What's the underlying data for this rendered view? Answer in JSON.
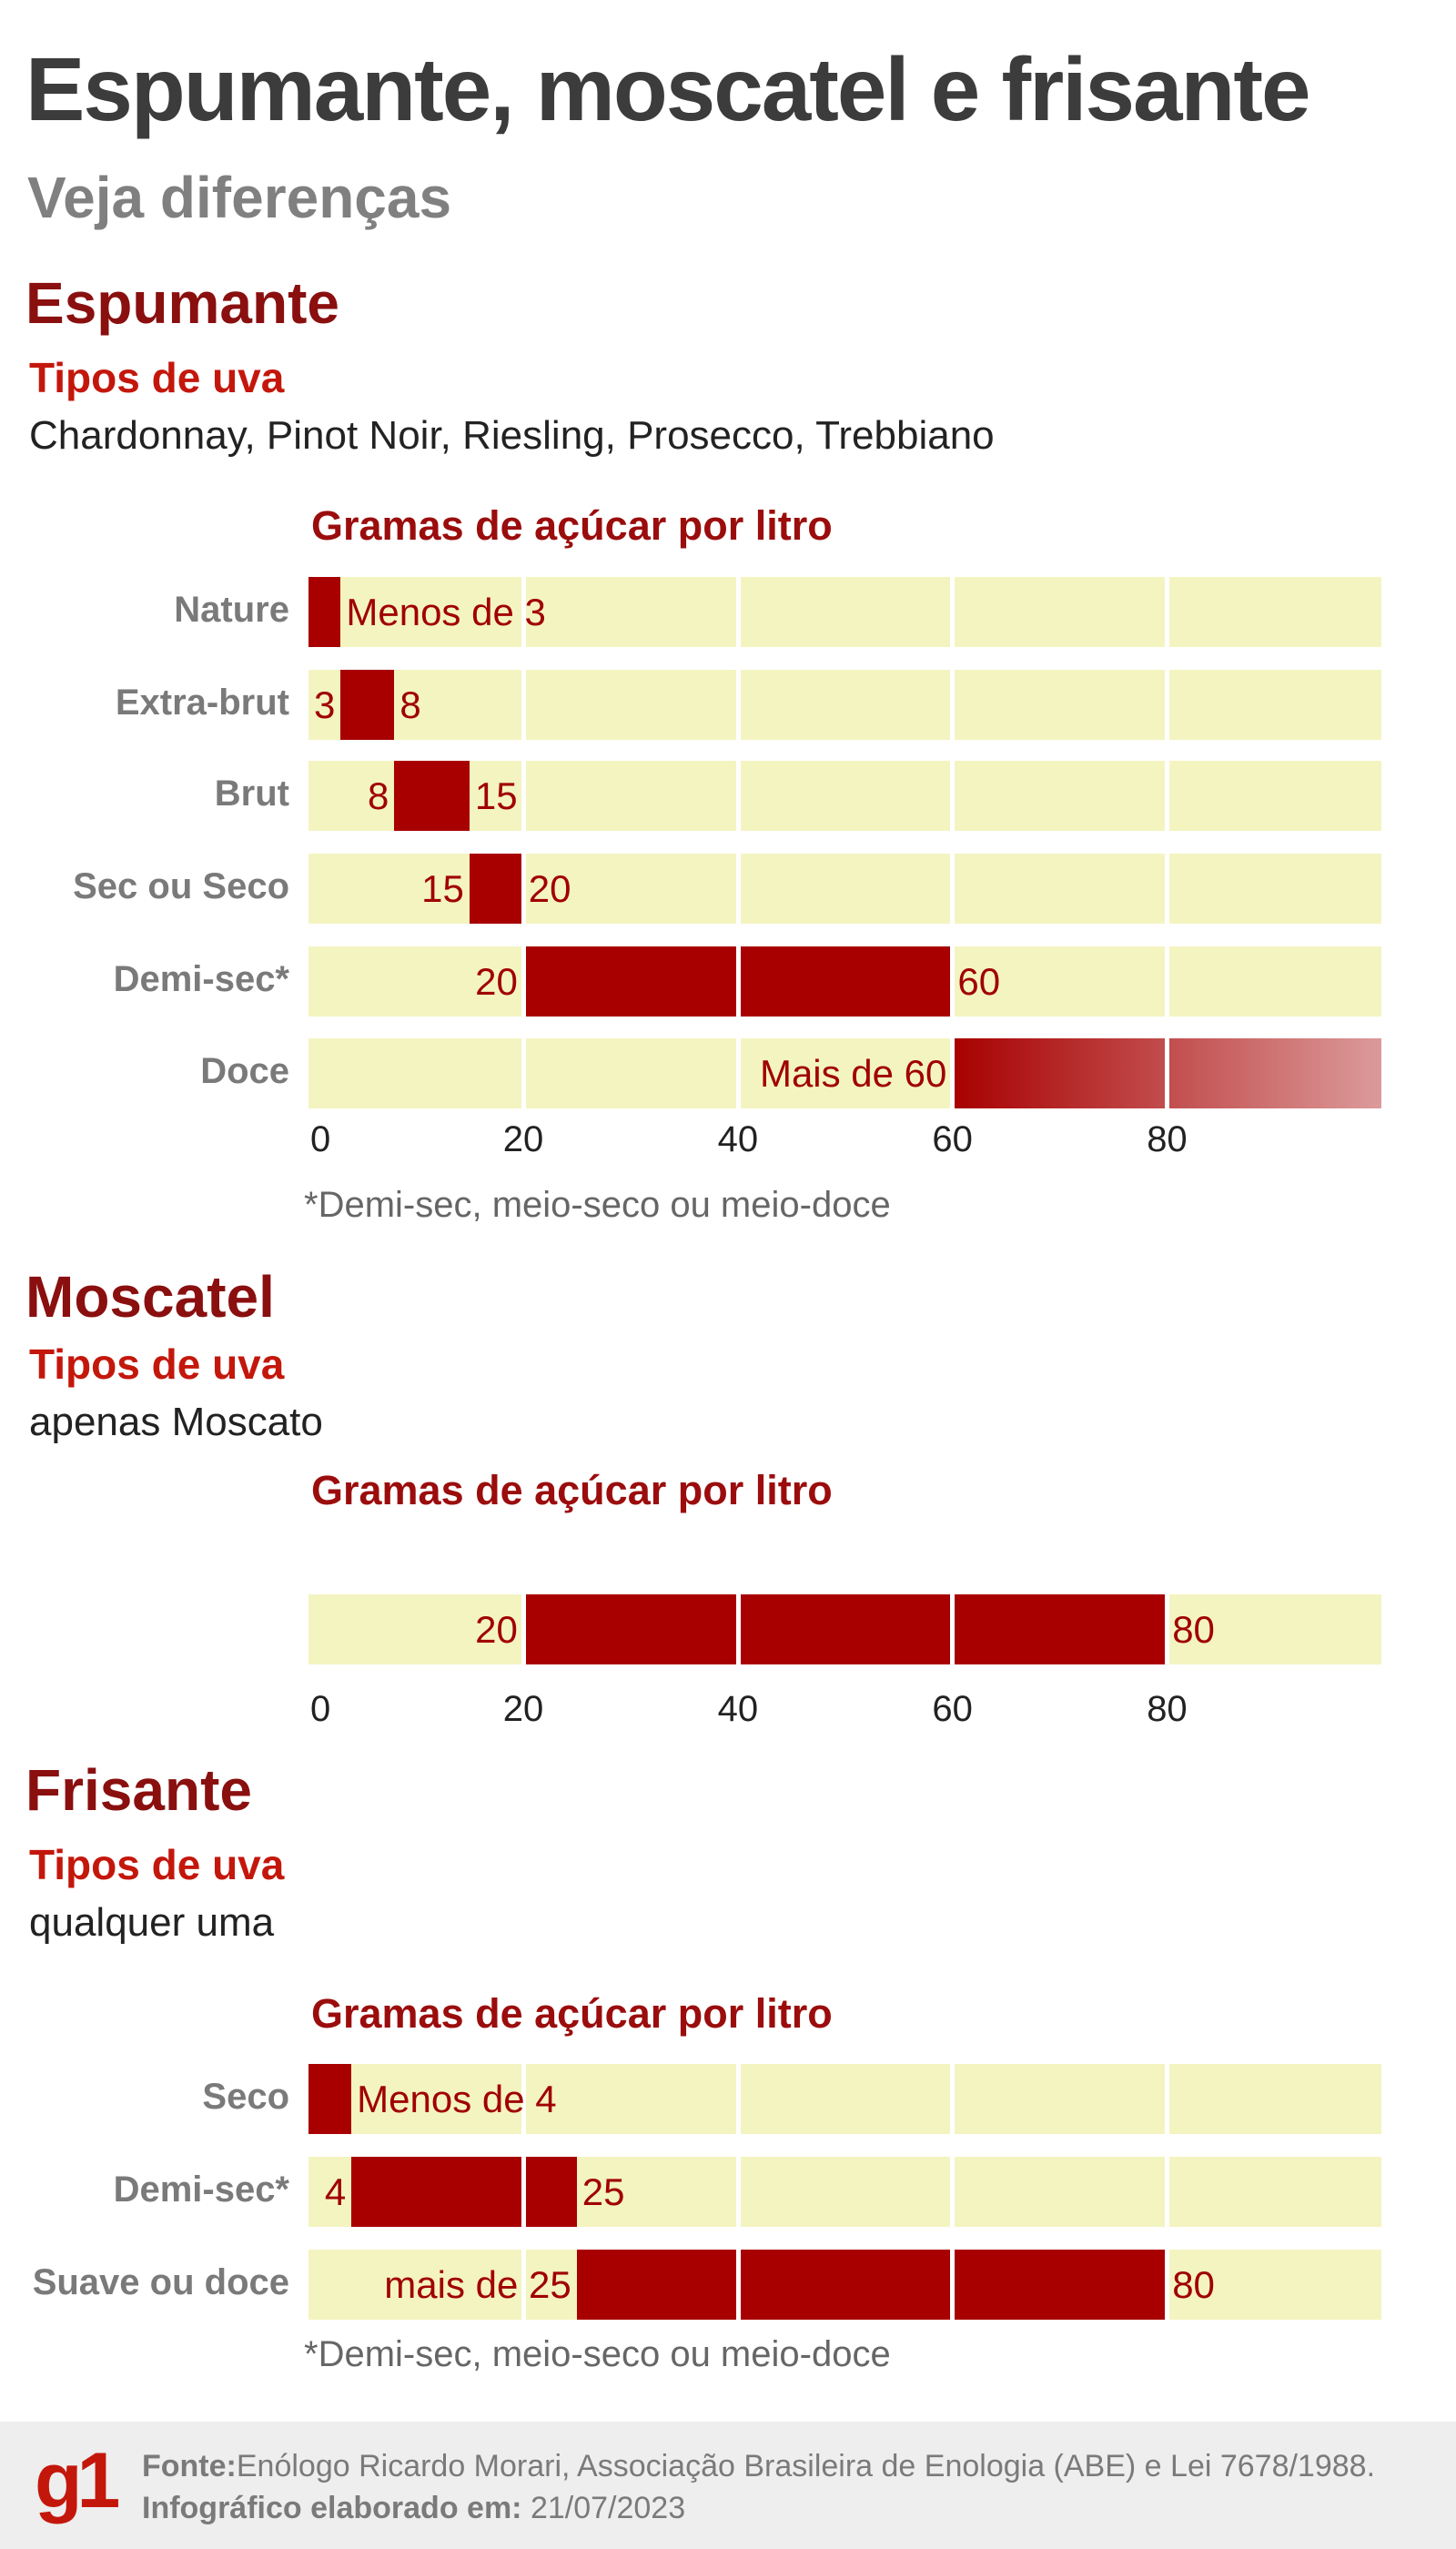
{
  "header": {
    "title": "Espumante, moscatel e frisante",
    "subtitle": "Veja diferenças"
  },
  "sections": [
    {
      "heading": "Espumante",
      "grapes_label": "Tipos de uva",
      "grapes": "Chardonnay, Pinot Noir, Riesling, Prosecco, Trebbiano"
    },
    {
      "heading": "Moscatel",
      "grapes_label": "Tipos de uva",
      "grapes": "apenas Moscato"
    },
    {
      "heading": "Frisante",
      "grapes_label": "Tipos de uva",
      "grapes": "qualquer uma"
    }
  ],
  "colors": {
    "bar": "#a80000",
    "track": "#f4f4c1",
    "heading": "#8a0f0f",
    "accent": "#c4170c",
    "gradient_end": "#dc9a9a"
  },
  "chart_data": [
    {
      "type": "bar",
      "orientation": "horizontal-range",
      "title": "Gramas de açúcar por litro",
      "xlim": [
        0,
        100
      ],
      "ticks": [
        "0",
        "20",
        "40",
        "60",
        "80"
      ],
      "grid": true,
      "categories": [
        "Nature",
        "Extra-brut",
        "Brut",
        "Sec ou Seco",
        "Demi-sec*",
        "Doce"
      ],
      "ranges": [
        [
          0,
          3
        ],
        [
          3,
          8
        ],
        [
          8,
          15
        ],
        [
          15,
          20
        ],
        [
          20,
          60
        ],
        [
          60,
          100
        ]
      ],
      "start_labels": [
        "",
        "3",
        "8",
        "15",
        "20",
        "Mais de 60"
      ],
      "end_labels": [
        "Menos de 3",
        "8",
        "15",
        "20",
        "60",
        ""
      ],
      "gradient": [
        false,
        false,
        false,
        false,
        false,
        true
      ],
      "footnote": "*Demi-sec, meio-seco ou meio-doce"
    },
    {
      "type": "bar",
      "orientation": "horizontal-range",
      "title": "Gramas de açúcar por litro",
      "xlim": [
        0,
        100
      ],
      "ticks": [
        "0",
        "20",
        "40",
        "60",
        "80"
      ],
      "grid": true,
      "categories": [
        ""
      ],
      "ranges": [
        [
          20,
          80
        ]
      ],
      "start_labels": [
        "20"
      ],
      "end_labels": [
        "80"
      ],
      "gradient": [
        false
      ]
    },
    {
      "type": "bar",
      "orientation": "horizontal-range",
      "title": "Gramas de açúcar por litro",
      "xlim": [
        0,
        100
      ],
      "grid": true,
      "categories": [
        "Seco",
        "Demi-sec*",
        "Suave ou doce"
      ],
      "ranges": [
        [
          0,
          4
        ],
        [
          4,
          25
        ],
        [
          25,
          80
        ]
      ],
      "start_labels": [
        "",
        "4",
        "mais de 25"
      ],
      "end_labels": [
        "Menos de 4",
        "25",
        "80"
      ],
      "gradient": [
        false,
        false,
        false
      ],
      "footnote": "*Demi-sec, meio-seco ou meio-doce"
    }
  ],
  "footer": {
    "logo": "g1",
    "source_label": "Fonte:",
    "source": "Enólogo Ricardo Morari, Associação Brasileira de Enologia (ABE) e Lei 7678/1988.",
    "date_label": "Infográfico elaborado em:",
    "date": "21/07/2023"
  }
}
